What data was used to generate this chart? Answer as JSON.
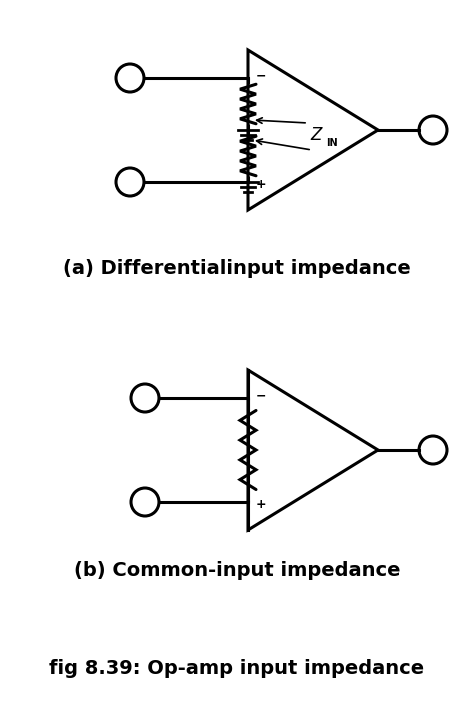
{
  "bg_color": "#ffffff",
  "line_color": "#000000",
  "line_width": 2.2,
  "label_a": "(a) Differentialinput impedance",
  "label_b": "(b) Common-input impedance",
  "caption": "fig 8.39: Op-amp input impedance",
  "label_fontsize": 14,
  "caption_fontsize": 14,
  "fig_width": 4.74,
  "fig_height": 7.24
}
